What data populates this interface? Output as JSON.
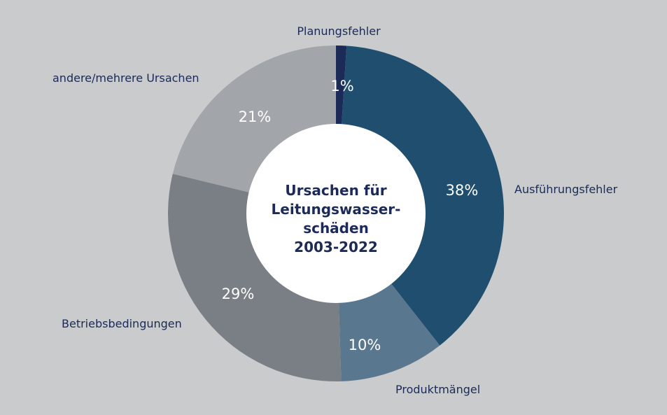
{
  "chart_data": {
    "type": "pie",
    "style": "donut",
    "title_lines": [
      "Ursachen für",
      "Leitungswasser-",
      "schäden",
      "2003-2022"
    ],
    "slices": [
      {
        "label": "Planungsfehler",
        "value": 1,
        "value_label": "1%",
        "color": "#1b2a57"
      },
      {
        "label": "Ausführungsfehler",
        "value": 38,
        "value_label": "38%",
        "color": "#1f4e6f"
      },
      {
        "label": "Produktmängel",
        "value": 10,
        "value_label": "10%",
        "color": "#5a7790"
      },
      {
        "label": "Betriebsbedingungen",
        "value": 29,
        "value_label": "29%",
        "color": "#7a7f86"
      },
      {
        "label": "andere/mehrere Ursachen",
        "value": 21,
        "value_label": "21%",
        "color": "#a2a5aa"
      }
    ],
    "start_angle_deg": 0,
    "direction": "clockwise",
    "center_fill": "#ffffff",
    "label_color": "#1b2a57",
    "value_label_color": "#ffffff"
  }
}
